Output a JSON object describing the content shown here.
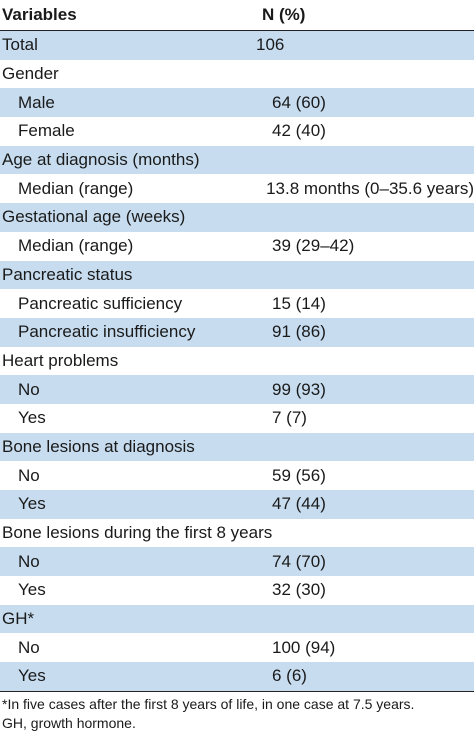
{
  "table": {
    "headers": [
      "Variables",
      "N (%)"
    ],
    "rows": [
      {
        "label": "Total",
        "value": "106",
        "indent": false
      },
      {
        "label": "Gender",
        "value": "",
        "indent": false
      },
      {
        "label": "Male",
        "value": "64 (60)",
        "indent": true
      },
      {
        "label": "Female",
        "value": "42 (40)",
        "indent": true
      },
      {
        "label": "Age at diagnosis (months)",
        "value": "",
        "indent": false
      },
      {
        "label": "Median (range)",
        "value": "13.8 months (0–35.6 years)",
        "indent": true
      },
      {
        "label": "Gestational age (weeks)",
        "value": "",
        "indent": false
      },
      {
        "label": "Median (range)",
        "value": "39 (29–42)",
        "indent": true
      },
      {
        "label": "Pancreatic status",
        "value": "",
        "indent": false
      },
      {
        "label": "Pancreatic sufficiency",
        "value": "15 (14)",
        "indent": true
      },
      {
        "label": "Pancreatic insufficiency",
        "value": "91 (86)",
        "indent": true
      },
      {
        "label": "Heart problems",
        "value": "",
        "indent": false
      },
      {
        "label": "No",
        "value": "99 (93)",
        "indent": true
      },
      {
        "label": "Yes",
        "value": "7 (7)",
        "indent": true
      },
      {
        "label": "Bone lesions at diagnosis",
        "value": "",
        "indent": false
      },
      {
        "label": "No",
        "value": "59 (56)",
        "indent": true
      },
      {
        "label": "Yes",
        "value": "47 (44)",
        "indent": true
      },
      {
        "label": "Bone lesions during the first 8 years",
        "value": "",
        "indent": false
      },
      {
        "label": "No",
        "value": "74 (70)",
        "indent": true
      },
      {
        "label": "Yes",
        "value": "32 (30)",
        "indent": true
      },
      {
        "label": "GH*",
        "value": "",
        "indent": false
      },
      {
        "label": "No",
        "value": "100 (94)",
        "indent": true
      },
      {
        "label": "Yes",
        "value": "6 (6)",
        "indent": true
      }
    ],
    "footnote_lines": [
      "*In five cases after the first 8 years of life, in one case at 7.5 years.",
      "GH, growth hormone."
    ]
  }
}
